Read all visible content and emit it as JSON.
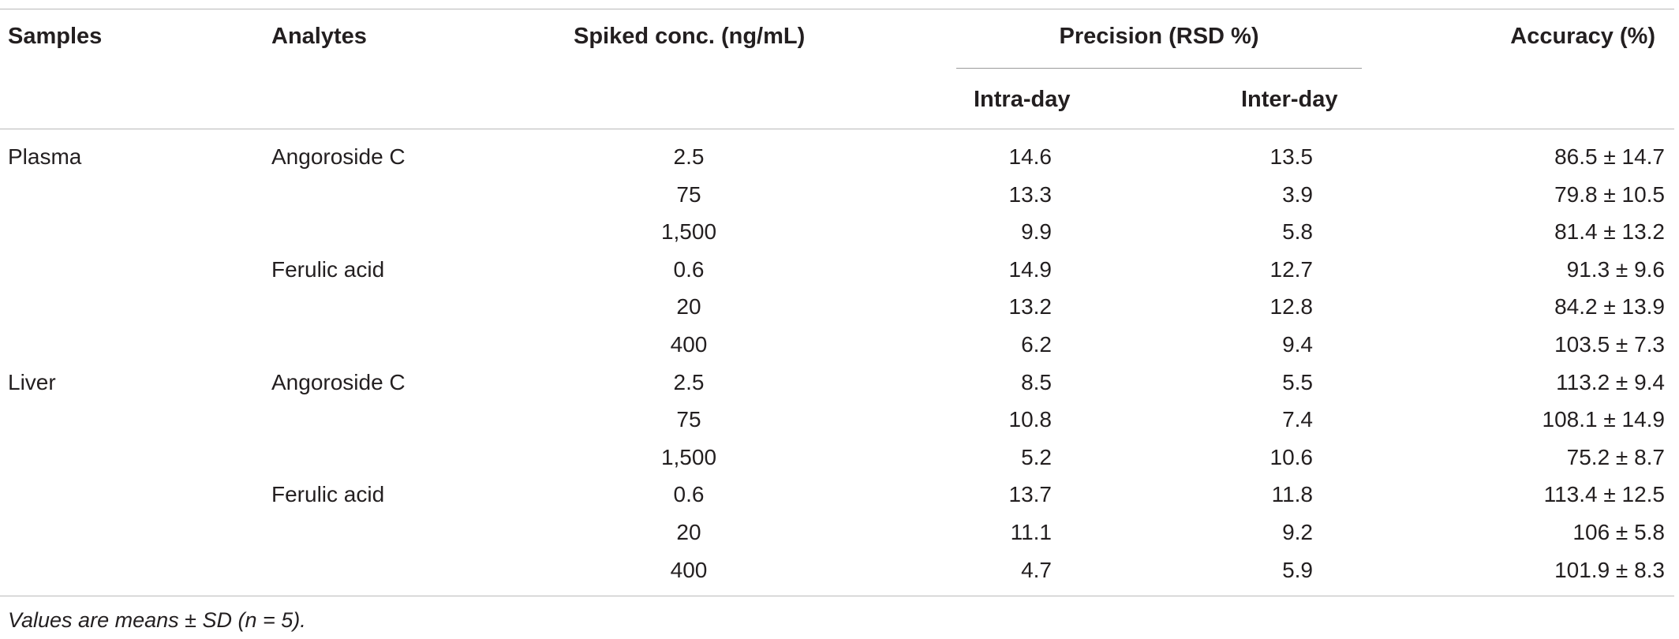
{
  "headers": {
    "samples": "Samples",
    "analytes": "Analytes",
    "spiked": "Spiked conc. (ng/mL)",
    "precision": "Precision (RSD %)",
    "intra": "Intra-day",
    "inter": "Inter-day",
    "accuracy": "Accuracy (%)"
  },
  "rows": [
    {
      "sample": "Plasma",
      "analyte": "Angoroside C",
      "conc": "2.5",
      "intra": "14.6",
      "inter": "13.5",
      "accuracy": "86.5 ± 14.7"
    },
    {
      "sample": "",
      "analyte": "",
      "conc": "75",
      "intra": "13.3",
      "inter": "3.9",
      "accuracy": "79.8 ± 10.5"
    },
    {
      "sample": "",
      "analyte": "",
      "conc": "1,500",
      "intra": "9.9",
      "inter": "5.8",
      "accuracy": "81.4 ± 13.2"
    },
    {
      "sample": "",
      "analyte": "Ferulic acid",
      "conc": "0.6",
      "intra": "14.9",
      "inter": "12.7",
      "accuracy": "91.3 ± 9.6"
    },
    {
      "sample": "",
      "analyte": "",
      "conc": "20",
      "intra": "13.2",
      "inter": "12.8",
      "accuracy": "84.2 ± 13.9"
    },
    {
      "sample": "",
      "analyte": "",
      "conc": "400",
      "intra": "6.2",
      "inter": "9.4",
      "accuracy": "103.5 ± 7.3"
    },
    {
      "sample": "Liver",
      "analyte": "Angoroside C",
      "conc": "2.5",
      "intra": "8.5",
      "inter": "5.5",
      "accuracy": "113.2 ± 9.4"
    },
    {
      "sample": "",
      "analyte": "",
      "conc": "75",
      "intra": "10.8",
      "inter": "7.4",
      "accuracy": "108.1 ± 14.9"
    },
    {
      "sample": "",
      "analyte": "",
      "conc": "1,500",
      "intra": "5.2",
      "inter": "10.6",
      "accuracy": "75.2 ± 8.7"
    },
    {
      "sample": "",
      "analyte": "Ferulic acid",
      "conc": "0.6",
      "intra": "13.7",
      "inter": "11.8",
      "accuracy": "113.4 ± 12.5"
    },
    {
      "sample": "",
      "analyte": "",
      "conc": "20",
      "intra": "11.1",
      "inter": "9.2",
      "accuracy": "106 ± 5.8"
    },
    {
      "sample": "",
      "analyte": "",
      "conc": "400",
      "intra": "4.7",
      "inter": "5.9",
      "accuracy": "101.9 ± 8.3"
    }
  ],
  "footnote": "Values are means ± SD (n = 5)."
}
